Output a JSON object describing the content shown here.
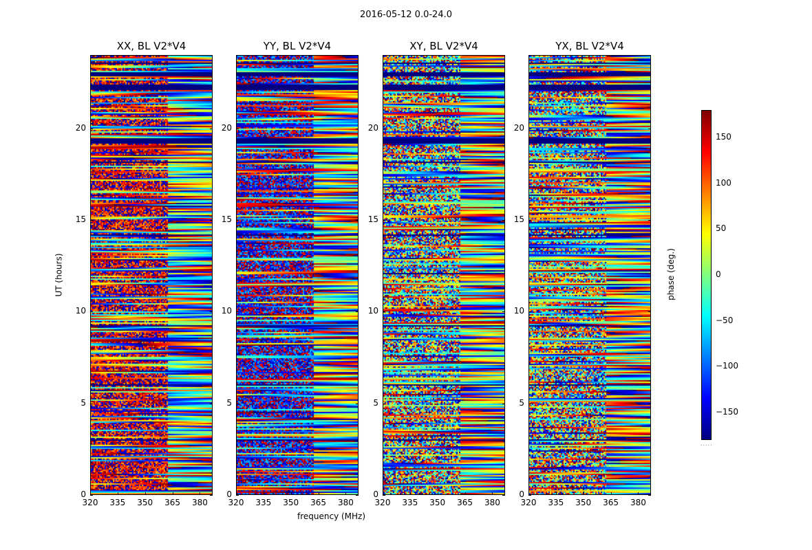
{
  "chart_data": {
    "type": "heatmap",
    "title": "2016-05-12 0.0-24.0",
    "xlabel": "frequency (MHz)",
    "ylabel": "UT (hours)",
    "xlim": [
      320,
      387
    ],
    "ylim": [
      0,
      24
    ],
    "xticks": [
      "320",
      "335",
      "350",
      "365",
      "380"
    ],
    "xtick_values": [
      320,
      335,
      350,
      365,
      380
    ],
    "yticks": [
      "0",
      "5",
      "10",
      "15",
      "20"
    ],
    "ytick_values": [
      0,
      5,
      10,
      15,
      20
    ],
    "colorbar": {
      "label": "phase (deg.)",
      "range": [
        -180,
        180
      ],
      "ticks": [
        "−150",
        "−100",
        "−50",
        "0",
        "50",
        "100",
        "150"
      ],
      "tick_values": [
        -150,
        -100,
        -50,
        0,
        50,
        100,
        150
      ],
      "colormap": "jet",
      "colors": [
        "#00007f",
        "#0000ff",
        "#007fff",
        "#00ffff",
        "#7fff7f",
        "#ffff00",
        "#ff7f00",
        "#ff0000",
        "#7f0000"
      ]
    },
    "panels": [
      {
        "title": "XX, BL V2*V4",
        "mean_phase_low_freq": 150,
        "noise": 0.45
      },
      {
        "title": "YY, BL V2*V4",
        "mean_phase_low_freq": -150,
        "noise": 0.5
      },
      {
        "title": "XY, BL V2*V4",
        "mean_phase_low_freq": 0,
        "noise": 1.0
      },
      {
        "title": "YX, BL V2*V4",
        "mean_phase_low_freq": 0,
        "noise": 1.0
      }
    ]
  }
}
